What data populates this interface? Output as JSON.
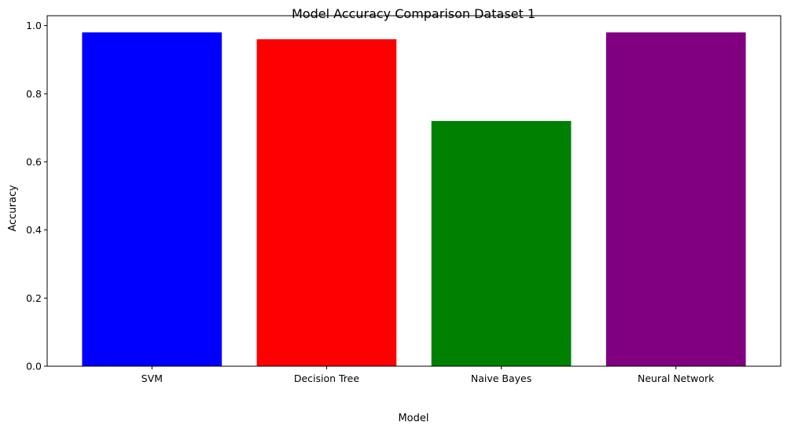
{
  "chart_data": {
    "type": "bar",
    "title": "Model Accuracy Comparison Dataset 1",
    "xlabel": "Model",
    "ylabel": "Accuracy",
    "categories": [
      "SVM",
      "Decision Tree",
      "Naive Bayes",
      "Neural Network"
    ],
    "values": [
      0.98,
      0.96,
      0.72,
      0.98
    ],
    "colors": [
      "#0000ff",
      "#ff0000",
      "#008000",
      "#800080"
    ],
    "ylim": [
      0,
      1.029
    ],
    "yticks": [
      0.0,
      0.2,
      0.4,
      0.6,
      0.8,
      1.0
    ],
    "ytick_labels": [
      "0.0",
      "0.2",
      "0.4",
      "0.6",
      "0.8",
      "1.0"
    ],
    "grid": false,
    "legend": "none"
  }
}
